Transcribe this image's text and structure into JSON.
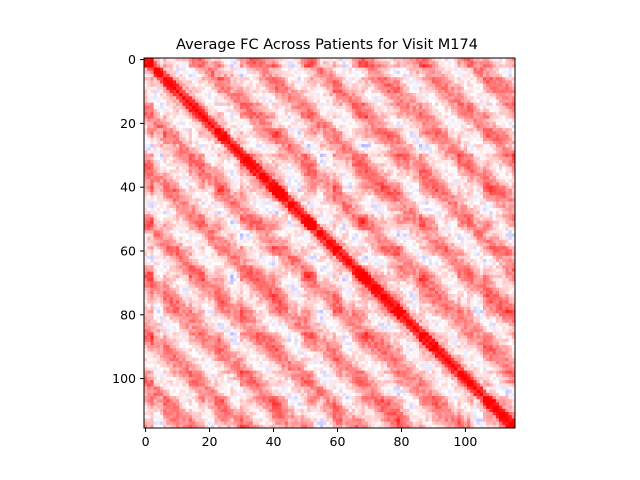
{
  "chart_data": {
    "type": "heatmap",
    "title": "Average FC Across Patients for Visit M174",
    "xlabel": "",
    "ylabel": "",
    "n": 116,
    "xlim": [
      -0.5,
      115.5
    ],
    "ylim": [
      115.5,
      -0.5
    ],
    "x_ticks": [
      0,
      20,
      40,
      60,
      80,
      100
    ],
    "y_ticks": [
      0,
      20,
      40,
      60,
      80,
      100
    ],
    "colormap": "bwr",
    "colormap_low": "#0000ff",
    "colormap_mid": "#ffffff",
    "colormap_high": "#ff0000",
    "value_range": [
      -1,
      1
    ],
    "diagonal_value": 1,
    "grid": false,
    "legend": "none"
  }
}
